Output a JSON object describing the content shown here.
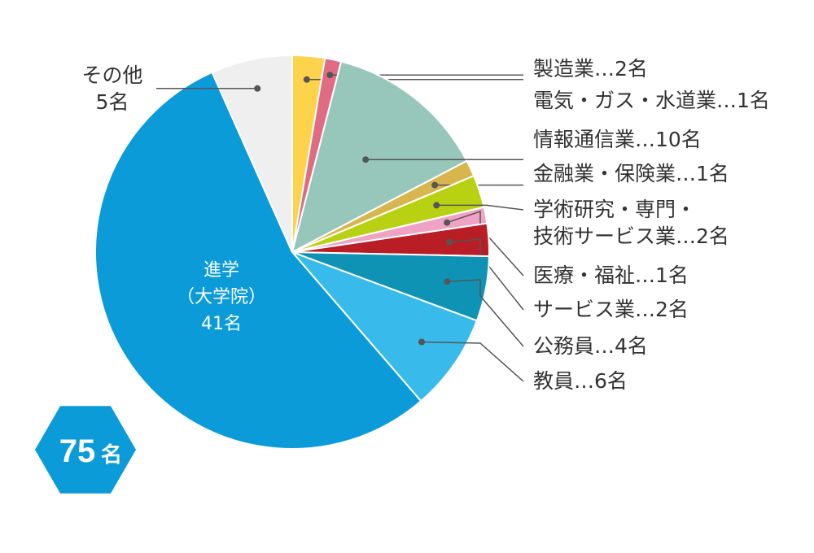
{
  "chart_data": {
    "type": "pie",
    "total_label": {
      "number": "75",
      "unit": "名"
    },
    "slices": [
      {
        "key": "manufacturing",
        "lines": [
          "製造業…2名"
        ],
        "value": 2,
        "color": "#FCD34A"
      },
      {
        "key": "utilities",
        "lines": [
          "電気・ガス・水道業…1名"
        ],
        "value": 1,
        "color": "#E06C84"
      },
      {
        "key": "it",
        "lines": [
          "情報通信業…10名"
        ],
        "value": 10,
        "color": "#97C6BA"
      },
      {
        "key": "finance",
        "lines": [
          "金融業・保険業…1名"
        ],
        "value": 1,
        "color": "#D8B64E"
      },
      {
        "key": "research",
        "lines": [
          "学術研究・専門・",
          "技術サービス業…2名"
        ],
        "value": 2,
        "color": "#B9D113"
      },
      {
        "key": "medical",
        "lines": [
          "医療・福祉…1名"
        ],
        "value": 1,
        "color": "#F0A2C4"
      },
      {
        "key": "service",
        "lines": [
          "サービス業…2名"
        ],
        "value": 2,
        "color": "#B91E26"
      },
      {
        "key": "public",
        "lines": [
          "公務員…4名"
        ],
        "value": 4,
        "color": "#0E93B5"
      },
      {
        "key": "teacher",
        "lines": [
          "教員…6名"
        ],
        "value": 6,
        "color": "#38BBEA"
      },
      {
        "key": "grad",
        "lines": [
          "進学",
          "（大学院）",
          "41名"
        ],
        "value": 41,
        "color": "#0A9BD8"
      },
      {
        "key": "other",
        "lines": [
          "その他",
          "5名"
        ],
        "value": 5,
        "color": "#EFEFEF"
      }
    ]
  },
  "colors": {
    "badge": "#0A9BD8",
    "leader": "#555555",
    "label_text": "#333333"
  }
}
